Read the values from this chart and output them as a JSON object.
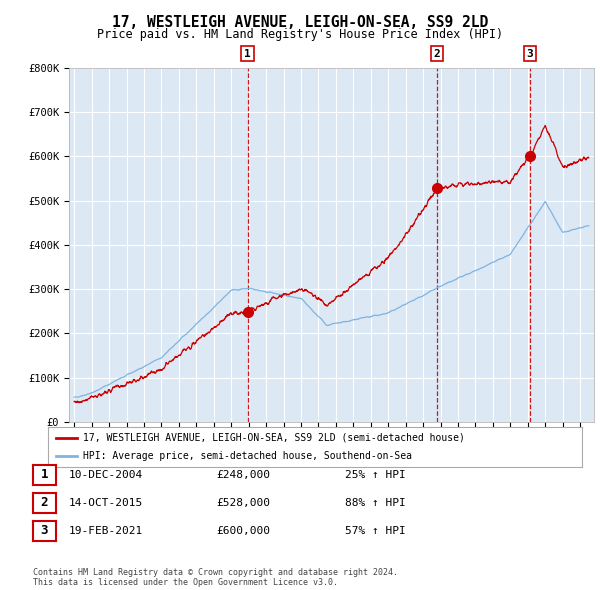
{
  "title": "17, WESTLEIGH AVENUE, LEIGH-ON-SEA, SS9 2LD",
  "subtitle": "Price paid vs. HM Land Registry's House Price Index (HPI)",
  "title_fontsize": 10.5,
  "subtitle_fontsize": 8.5,
  "plot_bg_color": "#dce9f5",
  "outer_bg_color": "#ffffff",
  "ylim": [
    0,
    800000
  ],
  "yticks": [
    0,
    100000,
    200000,
    300000,
    400000,
    500000,
    600000,
    700000,
    800000
  ],
  "ytick_labels": [
    "£0",
    "£100K",
    "£200K",
    "£300K",
    "£400K",
    "£500K",
    "£600K",
    "£700K",
    "£800K"
  ],
  "hpi_line_color": "#7fb4e0",
  "price_line_color": "#cc0000",
  "marker_color": "#cc0000",
  "dashed_line_color": "#cc0000",
  "grid_color": "#ffffff",
  "purchases": [
    {
      "date_num": 2004.94,
      "price": 248000,
      "label": "1"
    },
    {
      "date_num": 2015.79,
      "price": 528000,
      "label": "2"
    },
    {
      "date_num": 2021.13,
      "price": 600000,
      "label": "3"
    }
  ],
  "legend_line1": "17, WESTLEIGH AVENUE, LEIGH-ON-SEA, SS9 2LD (semi-detached house)",
  "legend_line2": "HPI: Average price, semi-detached house, Southend-on-Sea",
  "table_rows": [
    {
      "num": "1",
      "date": "10-DEC-2004",
      "price": "£248,000",
      "pct": "25% ↑ HPI"
    },
    {
      "num": "2",
      "date": "14-OCT-2015",
      "price": "£528,000",
      "pct": "88% ↑ HPI"
    },
    {
      "num": "3",
      "date": "19-FEB-2021",
      "price": "£600,000",
      "pct": "57% ↑ HPI"
    }
  ],
  "footer": "Contains HM Land Registry data © Crown copyright and database right 2024.\nThis data is licensed under the Open Government Licence v3.0.",
  "xstart": 1995.0,
  "xend": 2024.5
}
